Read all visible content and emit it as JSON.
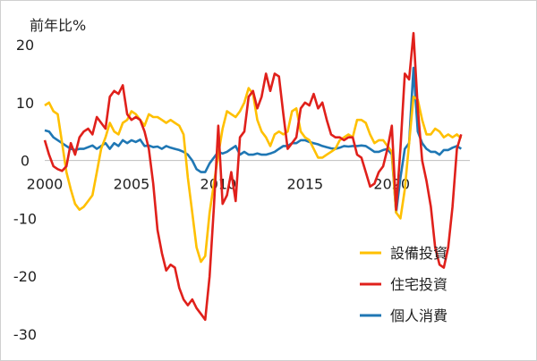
{
  "chart_data": {
    "type": "line",
    "ylabel": "前年比%",
    "ylim": [
      -30,
      22
    ],
    "yticks": [
      20,
      10,
      0,
      -10,
      -20,
      -30
    ],
    "xlim": [
      2000,
      2024.5
    ],
    "xticks": [
      2000,
      2005,
      2010,
      2015,
      2020
    ],
    "grid": false,
    "legend_position": "bottom-right",
    "series": [
      {
        "name": "設備投資",
        "color": "#FFC000",
        "points": [
          [
            2000.0,
            9.5
          ],
          [
            2000.25,
            10.0
          ],
          [
            2000.5,
            8.5
          ],
          [
            2000.75,
            8.0
          ],
          [
            2001.0,
            3.0
          ],
          [
            2001.25,
            -2.0
          ],
          [
            2001.5,
            -5.0
          ],
          [
            2001.75,
            -7.5
          ],
          [
            2002.0,
            -8.5
          ],
          [
            2002.25,
            -8.0
          ],
          [
            2002.5,
            -7.0
          ],
          [
            2002.75,
            -6.0
          ],
          [
            2003.0,
            -2.0
          ],
          [
            2003.25,
            2.0
          ],
          [
            2003.5,
            4.0
          ],
          [
            2003.75,
            6.5
          ],
          [
            2004.0,
            5.0
          ],
          [
            2004.25,
            4.5
          ],
          [
            2004.5,
            6.5
          ],
          [
            2004.75,
            7.0
          ],
          [
            2005.0,
            8.5
          ],
          [
            2005.25,
            8.0
          ],
          [
            2005.5,
            7.0
          ],
          [
            2005.75,
            6.0
          ],
          [
            2006.0,
            8.0
          ],
          [
            2006.25,
            7.5
          ],
          [
            2006.5,
            7.5
          ],
          [
            2006.75,
            7.0
          ],
          [
            2007.0,
            6.5
          ],
          [
            2007.25,
            7.0
          ],
          [
            2007.5,
            6.5
          ],
          [
            2007.75,
            6.0
          ],
          [
            2008.0,
            4.5
          ],
          [
            2008.25,
            -3.0
          ],
          [
            2008.5,
            -9.0
          ],
          [
            2008.75,
            -15.0
          ],
          [
            2009.0,
            -17.5
          ],
          [
            2009.25,
            -16.5
          ],
          [
            2009.5,
            -9.0
          ],
          [
            2009.75,
            -4.0
          ],
          [
            2010.0,
            1.0
          ],
          [
            2010.25,
            5.5
          ],
          [
            2010.5,
            8.5
          ],
          [
            2010.75,
            8.0
          ],
          [
            2011.0,
            7.5
          ],
          [
            2011.25,
            8.5
          ],
          [
            2011.5,
            10.0
          ],
          [
            2011.75,
            12.5
          ],
          [
            2012.0,
            11.5
          ],
          [
            2012.25,
            7.0
          ],
          [
            2012.5,
            5.0
          ],
          [
            2012.75,
            4.0
          ],
          [
            2013.0,
            2.5
          ],
          [
            2013.25,
            4.5
          ],
          [
            2013.5,
            5.0
          ],
          [
            2013.75,
            4.5
          ],
          [
            2014.0,
            5.0
          ],
          [
            2014.25,
            8.5
          ],
          [
            2014.5,
            9.0
          ],
          [
            2014.75,
            5.0
          ],
          [
            2015.0,
            4.0
          ],
          [
            2015.25,
            3.5
          ],
          [
            2015.5,
            2.0
          ],
          [
            2015.75,
            0.5
          ],
          [
            2016.0,
            0.5
          ],
          [
            2016.25,
            1.0
          ],
          [
            2016.5,
            1.5
          ],
          [
            2016.75,
            2.0
          ],
          [
            2017.0,
            3.5
          ],
          [
            2017.25,
            4.0
          ],
          [
            2017.5,
            4.5
          ],
          [
            2017.75,
            4.0
          ],
          [
            2018.0,
            7.0
          ],
          [
            2018.25,
            7.0
          ],
          [
            2018.5,
            6.5
          ],
          [
            2018.75,
            4.5
          ],
          [
            2019.0,
            3.0
          ],
          [
            2019.25,
            3.5
          ],
          [
            2019.5,
            3.5
          ],
          [
            2019.75,
            2.5
          ],
          [
            2020.0,
            1.5
          ],
          [
            2020.25,
            -9.0
          ],
          [
            2020.5,
            -10.0
          ],
          [
            2020.75,
            -5.0
          ],
          [
            2021.0,
            3.0
          ],
          [
            2021.25,
            11.0
          ],
          [
            2021.5,
            10.5
          ],
          [
            2021.75,
            7.0
          ],
          [
            2022.0,
            4.5
          ],
          [
            2022.25,
            4.5
          ],
          [
            2022.5,
            5.5
          ],
          [
            2022.75,
            5.0
          ],
          [
            2023.0,
            4.0
          ],
          [
            2023.25,
            4.5
          ],
          [
            2023.5,
            4.0
          ],
          [
            2023.75,
            4.5
          ],
          [
            2024.0,
            3.8
          ]
        ]
      },
      {
        "name": "住宅投資",
        "color": "#E0201B",
        "points": [
          [
            2000.0,
            3.5
          ],
          [
            2000.25,
            1.0
          ],
          [
            2000.5,
            -1.0
          ],
          [
            2000.75,
            -1.5
          ],
          [
            2001.0,
            -1.8
          ],
          [
            2001.25,
            -1.0
          ],
          [
            2001.5,
            3.0
          ],
          [
            2001.75,
            1.0
          ],
          [
            2002.0,
            4.0
          ],
          [
            2002.25,
            5.0
          ],
          [
            2002.5,
            5.5
          ],
          [
            2002.75,
            4.5
          ],
          [
            2003.0,
            7.5
          ],
          [
            2003.25,
            6.5
          ],
          [
            2003.5,
            5.5
          ],
          [
            2003.75,
            11.0
          ],
          [
            2004.0,
            12.0
          ],
          [
            2004.25,
            11.5
          ],
          [
            2004.5,
            13.0
          ],
          [
            2004.75,
            8.0
          ],
          [
            2005.0,
            7.0
          ],
          [
            2005.25,
            7.5
          ],
          [
            2005.5,
            7.0
          ],
          [
            2005.75,
            5.0
          ],
          [
            2006.0,
            2.0
          ],
          [
            2006.25,
            -4.0
          ],
          [
            2006.5,
            -12.0
          ],
          [
            2006.75,
            -16.0
          ],
          [
            2007.0,
            -19.0
          ],
          [
            2007.25,
            -18.0
          ],
          [
            2007.5,
            -18.5
          ],
          [
            2007.75,
            -22.0
          ],
          [
            2008.0,
            -24.0
          ],
          [
            2008.25,
            -25.0
          ],
          [
            2008.5,
            -24.0
          ],
          [
            2008.75,
            -25.5
          ],
          [
            2009.0,
            -26.5
          ],
          [
            2009.25,
            -27.5
          ],
          [
            2009.5,
            -20.0
          ],
          [
            2009.75,
            -8.0
          ],
          [
            2010.0,
            6.0
          ],
          [
            2010.25,
            -7.5
          ],
          [
            2010.5,
            -6.0
          ],
          [
            2010.75,
            -2.0
          ],
          [
            2011.0,
            -7.0
          ],
          [
            2011.25,
            4.0
          ],
          [
            2011.5,
            5.0
          ],
          [
            2011.75,
            11.0
          ],
          [
            2012.0,
            12.0
          ],
          [
            2012.25,
            9.0
          ],
          [
            2012.5,
            11.0
          ],
          [
            2012.75,
            15.0
          ],
          [
            2013.0,
            12.0
          ],
          [
            2013.25,
            15.0
          ],
          [
            2013.5,
            14.5
          ],
          [
            2013.75,
            8.0
          ],
          [
            2014.0,
            2.0
          ],
          [
            2014.25,
            3.0
          ],
          [
            2014.5,
            4.0
          ],
          [
            2014.75,
            9.0
          ],
          [
            2015.0,
            10.0
          ],
          [
            2015.25,
            9.5
          ],
          [
            2015.5,
            11.5
          ],
          [
            2015.75,
            9.0
          ],
          [
            2016.0,
            10.0
          ],
          [
            2016.25,
            7.0
          ],
          [
            2016.5,
            4.5
          ],
          [
            2016.75,
            4.0
          ],
          [
            2017.0,
            4.0
          ],
          [
            2017.25,
            3.5
          ],
          [
            2017.5,
            4.0
          ],
          [
            2017.75,
            4.0
          ],
          [
            2018.0,
            1.0
          ],
          [
            2018.25,
            0.5
          ],
          [
            2018.5,
            -2.0
          ],
          [
            2018.75,
            -4.5
          ],
          [
            2019.0,
            -4.0
          ],
          [
            2019.25,
            -2.0
          ],
          [
            2019.5,
            -1.0
          ],
          [
            2019.75,
            2.0
          ],
          [
            2020.0,
            6.0
          ],
          [
            2020.25,
            -8.5
          ],
          [
            2020.5,
            2.0
          ],
          [
            2020.75,
            15.0
          ],
          [
            2021.0,
            14.0
          ],
          [
            2021.25,
            22.0
          ],
          [
            2021.5,
            9.0
          ],
          [
            2021.75,
            0.0
          ],
          [
            2022.0,
            -3.5
          ],
          [
            2022.25,
            -8.0
          ],
          [
            2022.5,
            -15.0
          ],
          [
            2022.75,
            -18.0
          ],
          [
            2023.0,
            -18.5
          ],
          [
            2023.25,
            -15.0
          ],
          [
            2023.5,
            -8.0
          ],
          [
            2023.75,
            2.0
          ],
          [
            2024.0,
            4.5
          ]
        ]
      },
      {
        "name": "個人消費",
        "color": "#1F77B4",
        "points": [
          [
            2000.0,
            5.2
          ],
          [
            2000.25,
            5.0
          ],
          [
            2000.5,
            4.0
          ],
          [
            2000.75,
            3.5
          ],
          [
            2001.0,
            3.0
          ],
          [
            2001.25,
            2.5
          ],
          [
            2001.5,
            2.0
          ],
          [
            2001.75,
            1.8
          ],
          [
            2002.0,
            2.0
          ],
          [
            2002.25,
            2.0
          ],
          [
            2002.5,
            2.3
          ],
          [
            2002.75,
            2.6
          ],
          [
            2003.0,
            2.0
          ],
          [
            2003.25,
            2.5
          ],
          [
            2003.5,
            3.0
          ],
          [
            2003.75,
            2.0
          ],
          [
            2004.0,
            3.0
          ],
          [
            2004.25,
            2.5
          ],
          [
            2004.5,
            3.5
          ],
          [
            2004.75,
            3.0
          ],
          [
            2005.0,
            3.5
          ],
          [
            2005.25,
            3.2
          ],
          [
            2005.5,
            3.6
          ],
          [
            2005.75,
            2.5
          ],
          [
            2006.0,
            2.6
          ],
          [
            2006.25,
            2.3
          ],
          [
            2006.5,
            2.4
          ],
          [
            2006.75,
            2.0
          ],
          [
            2007.0,
            2.5
          ],
          [
            2007.25,
            2.2
          ],
          [
            2007.5,
            2.0
          ],
          [
            2007.75,
            1.8
          ],
          [
            2008.0,
            1.5
          ],
          [
            2008.25,
            1.0
          ],
          [
            2008.5,
            0.0
          ],
          [
            2008.75,
            -1.5
          ],
          [
            2009.0,
            -2.0
          ],
          [
            2009.25,
            -2.0
          ],
          [
            2009.5,
            -0.5
          ],
          [
            2009.75,
            0.5
          ],
          [
            2010.0,
            1.5
          ],
          [
            2010.25,
            1.2
          ],
          [
            2010.5,
            1.5
          ],
          [
            2010.75,
            2.0
          ],
          [
            2011.0,
            2.5
          ],
          [
            2011.25,
            1.0
          ],
          [
            2011.5,
            1.5
          ],
          [
            2011.75,
            1.0
          ],
          [
            2012.0,
            1.0
          ],
          [
            2012.25,
            1.2
          ],
          [
            2012.5,
            1.0
          ],
          [
            2012.75,
            1.0
          ],
          [
            2013.0,
            1.2
          ],
          [
            2013.25,
            1.5
          ],
          [
            2013.5,
            2.0
          ],
          [
            2013.75,
            2.5
          ],
          [
            2014.0,
            2.5
          ],
          [
            2014.25,
            3.0
          ],
          [
            2014.5,
            3.0
          ],
          [
            2014.75,
            3.5
          ],
          [
            2015.0,
            3.5
          ],
          [
            2015.25,
            3.2
          ],
          [
            2015.5,
            3.0
          ],
          [
            2015.75,
            2.8
          ],
          [
            2016.0,
            2.5
          ],
          [
            2016.25,
            2.3
          ],
          [
            2016.5,
            2.1
          ],
          [
            2016.75,
            2.0
          ],
          [
            2017.0,
            2.2
          ],
          [
            2017.25,
            2.5
          ],
          [
            2017.5,
            2.4
          ],
          [
            2017.75,
            2.5
          ],
          [
            2018.0,
            2.5
          ],
          [
            2018.25,
            2.6
          ],
          [
            2018.5,
            2.5
          ],
          [
            2018.75,
            2.0
          ],
          [
            2019.0,
            1.5
          ],
          [
            2019.25,
            1.5
          ],
          [
            2019.5,
            1.8
          ],
          [
            2019.75,
            2.0
          ],
          [
            2020.0,
            1.0
          ],
          [
            2020.25,
            -9.0
          ],
          [
            2020.5,
            -3.0
          ],
          [
            2020.75,
            2.0
          ],
          [
            2021.0,
            3.0
          ],
          [
            2021.25,
            16.0
          ],
          [
            2021.5,
            5.0
          ],
          [
            2021.75,
            3.0
          ],
          [
            2022.0,
            2.0
          ],
          [
            2022.25,
            1.5
          ],
          [
            2022.5,
            1.5
          ],
          [
            2022.75,
            1.0
          ],
          [
            2023.0,
            1.8
          ],
          [
            2023.25,
            1.8
          ],
          [
            2023.5,
            2.2
          ],
          [
            2023.75,
            2.5
          ],
          [
            2024.0,
            2.0
          ]
        ]
      }
    ]
  }
}
